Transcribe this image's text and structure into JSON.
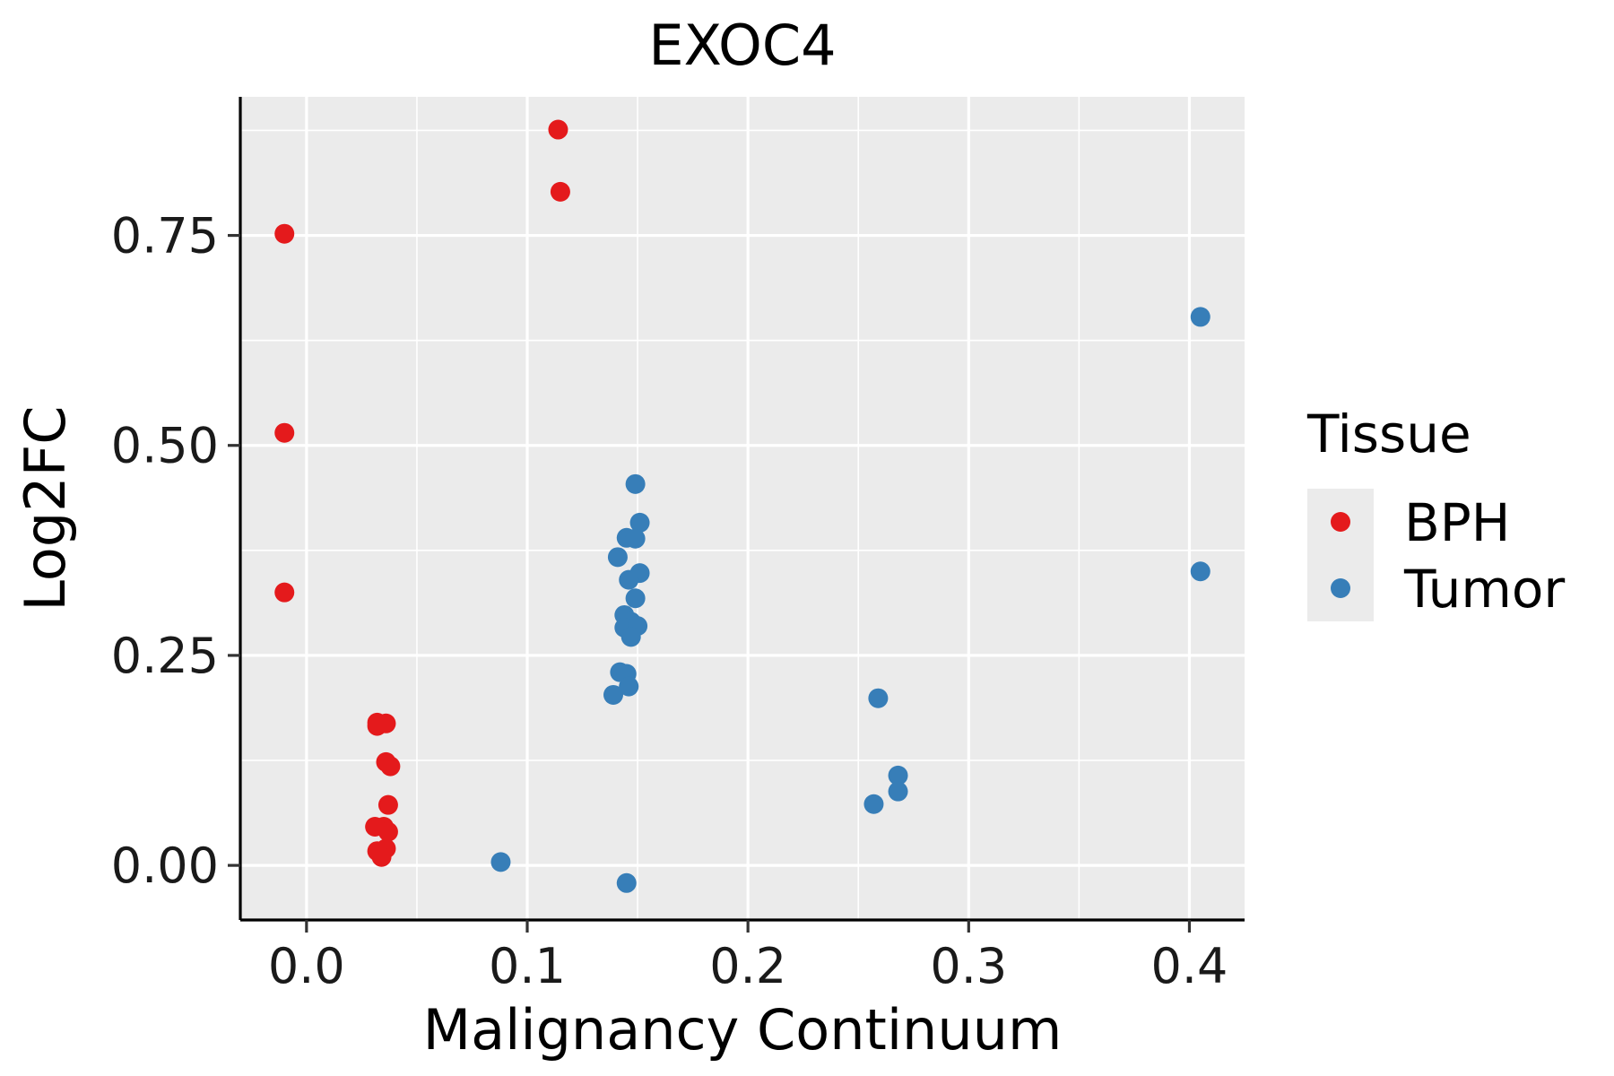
{
  "chart_data": {
    "type": "scatter",
    "title": "EXOC4",
    "xlabel": "Malignancy Continuum",
    "ylabel": "Log2FC",
    "xlim": [
      -0.03,
      0.425
    ],
    "ylim": [
      -0.065,
      0.915
    ],
    "x_ticks": [
      0.0,
      0.1,
      0.2,
      0.3,
      0.4
    ],
    "x_tick_labels": [
      "0.0",
      "0.1",
      "0.2",
      "0.3",
      "0.4"
    ],
    "y_ticks": [
      0.0,
      0.25,
      0.5,
      0.75
    ],
    "y_tick_labels": [
      "0.00",
      "0.25",
      "0.50",
      "0.75"
    ],
    "grid": true,
    "legend": {
      "title": "Tissue",
      "position": "right",
      "entries": [
        "BPH",
        "Tumor"
      ]
    },
    "colors": {
      "BPH": "#E41A1C",
      "Tumor": "#377EB8"
    },
    "series": [
      {
        "name": "BPH",
        "points": [
          {
            "x": -0.01,
            "y": 0.752
          },
          {
            "x": -0.01,
            "y": 0.515
          },
          {
            "x": -0.01,
            "y": 0.325
          },
          {
            "x": 0.114,
            "y": 0.876
          },
          {
            "x": 0.115,
            "y": 0.802
          },
          {
            "x": 0.032,
            "y": 0.17
          },
          {
            "x": 0.036,
            "y": 0.169
          },
          {
            "x": 0.032,
            "y": 0.166
          },
          {
            "x": 0.036,
            "y": 0.123
          },
          {
            "x": 0.038,
            "y": 0.118
          },
          {
            "x": 0.037,
            "y": 0.072
          },
          {
            "x": 0.031,
            "y": 0.046
          },
          {
            "x": 0.035,
            "y": 0.046
          },
          {
            "x": 0.037,
            "y": 0.04
          },
          {
            "x": 0.032,
            "y": 0.017
          },
          {
            "x": 0.036,
            "y": 0.02
          },
          {
            "x": 0.034,
            "y": 0.01
          }
        ]
      },
      {
        "name": "Tumor",
        "points": [
          {
            "x": 0.149,
            "y": 0.454
          },
          {
            "x": 0.151,
            "y": 0.408
          },
          {
            "x": 0.145,
            "y": 0.39
          },
          {
            "x": 0.149,
            "y": 0.389
          },
          {
            "x": 0.141,
            "y": 0.367
          },
          {
            "x": 0.151,
            "y": 0.348
          },
          {
            "x": 0.146,
            "y": 0.34
          },
          {
            "x": 0.149,
            "y": 0.318
          },
          {
            "x": 0.144,
            "y": 0.298
          },
          {
            "x": 0.147,
            "y": 0.29
          },
          {
            "x": 0.144,
            "y": 0.283
          },
          {
            "x": 0.15,
            "y": 0.285
          },
          {
            "x": 0.147,
            "y": 0.272
          },
          {
            "x": 0.142,
            "y": 0.23
          },
          {
            "x": 0.145,
            "y": 0.228
          },
          {
            "x": 0.146,
            "y": 0.213
          },
          {
            "x": 0.139,
            "y": 0.203
          },
          {
            "x": 0.088,
            "y": 0.004
          },
          {
            "x": 0.145,
            "y": -0.021
          },
          {
            "x": 0.259,
            "y": 0.199
          },
          {
            "x": 0.268,
            "y": 0.107
          },
          {
            "x": 0.268,
            "y": 0.088
          },
          {
            "x": 0.257,
            "y": 0.073
          },
          {
            "x": 0.405,
            "y": 0.653
          },
          {
            "x": 0.405,
            "y": 0.35
          }
        ]
      }
    ]
  }
}
